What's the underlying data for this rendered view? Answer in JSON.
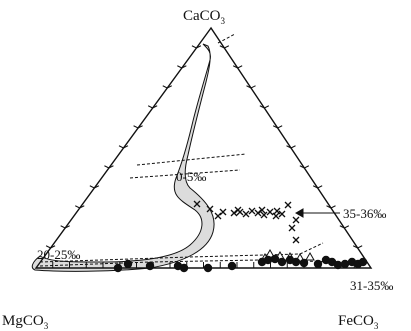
{
  "apex_labels": {
    "top": {
      "main": "CaCO",
      "sub": "3"
    },
    "bottom_left": {
      "main": "MgCO",
      "sub": "3"
    },
    "bottom_right": {
      "main": "FeCO",
      "sub": "3"
    }
  },
  "region_labels": {
    "upper": "0-5‰",
    "lower_left": "20-25‰",
    "cross_group": "35-36‰",
    "base_group": "31-35‰"
  },
  "colors": {
    "field_fill": "#dcdcdc",
    "stroke": "#111111"
  },
  "symbols": {
    "cross": "x-marker",
    "circle": "filled-circle",
    "triangle": "open-triangle"
  }
}
